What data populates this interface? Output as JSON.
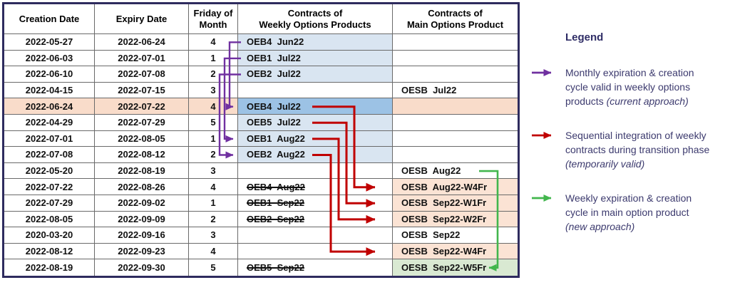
{
  "table": {
    "headers": [
      {
        "name": "creation-date",
        "lines": [
          "Creation Date"
        ]
      },
      {
        "name": "expiry-date",
        "lines": [
          "Expiry Date"
        ]
      },
      {
        "name": "friday-of-month",
        "lines": [
          "Friday of",
          "Month"
        ]
      },
      {
        "name": "weekly-contracts",
        "lines": [
          "Contracts of",
          "Weekly Options Products"
        ]
      },
      {
        "name": "main-contracts",
        "lines": [
          "Contracts of",
          "Main Options Product"
        ]
      }
    ],
    "rows": [
      {
        "creation": "2022-05-27",
        "expiry": "2022-06-24",
        "friday": "4",
        "weekly": {
          "text": "OEB4  Jun22",
          "bg": "blue",
          "strike": false
        },
        "main": {
          "text": "",
          "bg": "none"
        },
        "highlight": false
      },
      {
        "creation": "2022-06-03",
        "expiry": "2022-07-01",
        "friday": "1",
        "weekly": {
          "text": "OEB1  Jul22",
          "bg": "blue",
          "strike": false
        },
        "main": {
          "text": "",
          "bg": "none"
        },
        "highlight": false
      },
      {
        "creation": "2022-06-10",
        "expiry": "2022-07-08",
        "friday": "2",
        "weekly": {
          "text": "OEB2  Jul22",
          "bg": "blue",
          "strike": false
        },
        "main": {
          "text": "",
          "bg": "none"
        },
        "highlight": false
      },
      {
        "creation": "2022-04-15",
        "expiry": "2022-07-15",
        "friday": "3",
        "weekly": {
          "text": "",
          "bg": "none",
          "strike": false
        },
        "main": {
          "text": "OESB  Jul22",
          "bg": "none"
        },
        "highlight": false
      },
      {
        "creation": "2022-06-24",
        "expiry": "2022-07-22",
        "friday": "4",
        "weekly": {
          "text": "OEB4  Jul22",
          "bg": "blue-dark",
          "strike": false
        },
        "main": {
          "text": "",
          "bg": "rowhl"
        },
        "highlight": true
      },
      {
        "creation": "2022-04-29",
        "expiry": "2022-07-29",
        "friday": "5",
        "weekly": {
          "text": "OEB5  Jul22",
          "bg": "blue",
          "strike": false
        },
        "main": {
          "text": "",
          "bg": "none"
        },
        "highlight": false
      },
      {
        "creation": "2022-07-01",
        "expiry": "2022-08-05",
        "friday": "1",
        "weekly": {
          "text": "OEB1  Aug22",
          "bg": "blue",
          "strike": false
        },
        "main": {
          "text": "",
          "bg": "none"
        },
        "highlight": false
      },
      {
        "creation": "2022-07-08",
        "expiry": "2022-08-12",
        "friday": "2",
        "weekly": {
          "text": "OEB2  Aug22",
          "bg": "blue",
          "strike": false
        },
        "main": {
          "text": "",
          "bg": "none"
        },
        "highlight": false
      },
      {
        "creation": "2022-05-20",
        "expiry": "2022-08-19",
        "friday": "3",
        "weekly": {
          "text": "",
          "bg": "none",
          "strike": false
        },
        "main": {
          "text": "OESB  Aug22",
          "bg": "none"
        },
        "highlight": false
      },
      {
        "creation": "2022-07-22",
        "expiry": "2022-08-26",
        "friday": "4",
        "weekly": {
          "text": "OEB4  Aug22",
          "bg": "none",
          "strike": true
        },
        "main": {
          "text": "OESB  Aug22-W4Fr",
          "bg": "salmon"
        },
        "highlight": false
      },
      {
        "creation": "2022-07-29",
        "expiry": "2022-09-02",
        "friday": "1",
        "weekly": {
          "text": "OEB1  Sep22",
          "bg": "none",
          "strike": true
        },
        "main": {
          "text": "OESB  Sep22-W1Fr",
          "bg": "salmon"
        },
        "highlight": false
      },
      {
        "creation": "2022-08-05",
        "expiry": "2022-09-09",
        "friday": "2",
        "weekly": {
          "text": "OEB2  Sep22",
          "bg": "none",
          "strike": true
        },
        "main": {
          "text": "OESB  Sep22-W2Fr",
          "bg": "salmon"
        },
        "highlight": false
      },
      {
        "creation": "2020-03-20",
        "expiry": "2022-09-16",
        "friday": "3",
        "weekly": {
          "text": "",
          "bg": "none",
          "strike": false
        },
        "main": {
          "text": "OESB  Sep22",
          "bg": "none"
        },
        "highlight": false
      },
      {
        "creation": "2022-08-12",
        "expiry": "2022-09-23",
        "friday": "4",
        "weekly": {
          "text": "",
          "bg": "none",
          "strike": false
        },
        "main": {
          "text": "OESB  Sep22-W4Fr",
          "bg": "salmon"
        },
        "highlight": false
      },
      {
        "creation": "2022-08-19",
        "expiry": "2022-09-30",
        "friday": "5",
        "weekly": {
          "text": "OEB5  Sep22",
          "bg": "none",
          "strike": true
        },
        "main": {
          "text": "OESB  Sep22-W5Fr",
          "bg": "green"
        },
        "highlight": false
      }
    ],
    "arrows": [
      {
        "type": "monthly",
        "from_row": 1,
        "to_row": 5
      },
      {
        "type": "monthly",
        "from_row": 2,
        "to_row": 7
      },
      {
        "type": "monthly",
        "from_row": 3,
        "to_row": 8
      },
      {
        "type": "sequential",
        "from_row": 5,
        "to_row": 10
      },
      {
        "type": "sequential",
        "from_row": 6,
        "to_row": 11
      },
      {
        "type": "sequential",
        "from_row": 7,
        "to_row": 12
      },
      {
        "type": "sequential",
        "from_row": 8,
        "to_row": 14
      },
      {
        "type": "weekly",
        "from_row": 9,
        "to_row": 15
      }
    ]
  },
  "legend": {
    "title": "Legend",
    "items": [
      {
        "arrow": "monthly",
        "lines": [
          [
            {
              "text": "Monthly expiration & creation",
              "italic": false
            }
          ],
          [
            {
              "text": "cycle valid in weekly options",
              "italic": false
            }
          ],
          [
            {
              "text": "products ",
              "italic": false
            },
            {
              "text": "(current approach)",
              "italic": true
            }
          ]
        ]
      },
      {
        "arrow": "sequential",
        "lines": [
          [
            {
              "text": "Sequential integration of weekly",
              "italic": false
            }
          ],
          [
            {
              "text": "contracts during transition phase",
              "italic": false
            }
          ],
          [
            {
              "text": "(temporarily valid)",
              "italic": true
            }
          ]
        ]
      },
      {
        "arrow": "weekly",
        "lines": [
          [
            {
              "text": "Weekly expiration & creation",
              "italic": false
            }
          ],
          [
            {
              "text": "cycle in main option product",
              "italic": false
            }
          ],
          [
            {
              "text": "(new approach)",
              "italic": true
            }
          ]
        ]
      }
    ]
  },
  "colors": {
    "arrow_monthly": "#7030a0",
    "arrow_sequential": "#c00000",
    "arrow_weekly": "#42b64d",
    "table_border": "#2e2b5e",
    "grid_line": "#6a6a6a",
    "weekly_cell_blue": "#d9e5f1",
    "weekly_cell_blue_dark": "#9cc2e5",
    "main_cell_salmon": "#fbe3d4",
    "main_cell_green": "#d9e9d2",
    "highlight_row": "#f9dcca",
    "legend_text": "#3c3a6e"
  }
}
